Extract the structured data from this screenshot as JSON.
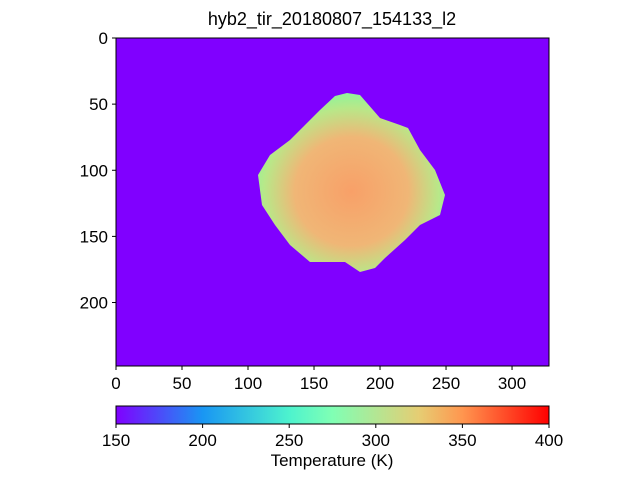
{
  "chart_data": {
    "type": "image",
    "title": "hyb2_tir_20180807_154133_l2",
    "xlim": [
      0,
      328
    ],
    "xticks": [
      0,
      50,
      100,
      150,
      200,
      250,
      300
    ],
    "ylim": [
      248,
      0
    ],
    "yticks": [
      0,
      50,
      100,
      150,
      200
    ],
    "background_color": "#8000ff",
    "colorbar": {
      "label": "Temperature (K)",
      "lim": [
        150,
        400
      ],
      "ticks": [
        150,
        200,
        250,
        300,
        350,
        400
      ]
    }
  }
}
